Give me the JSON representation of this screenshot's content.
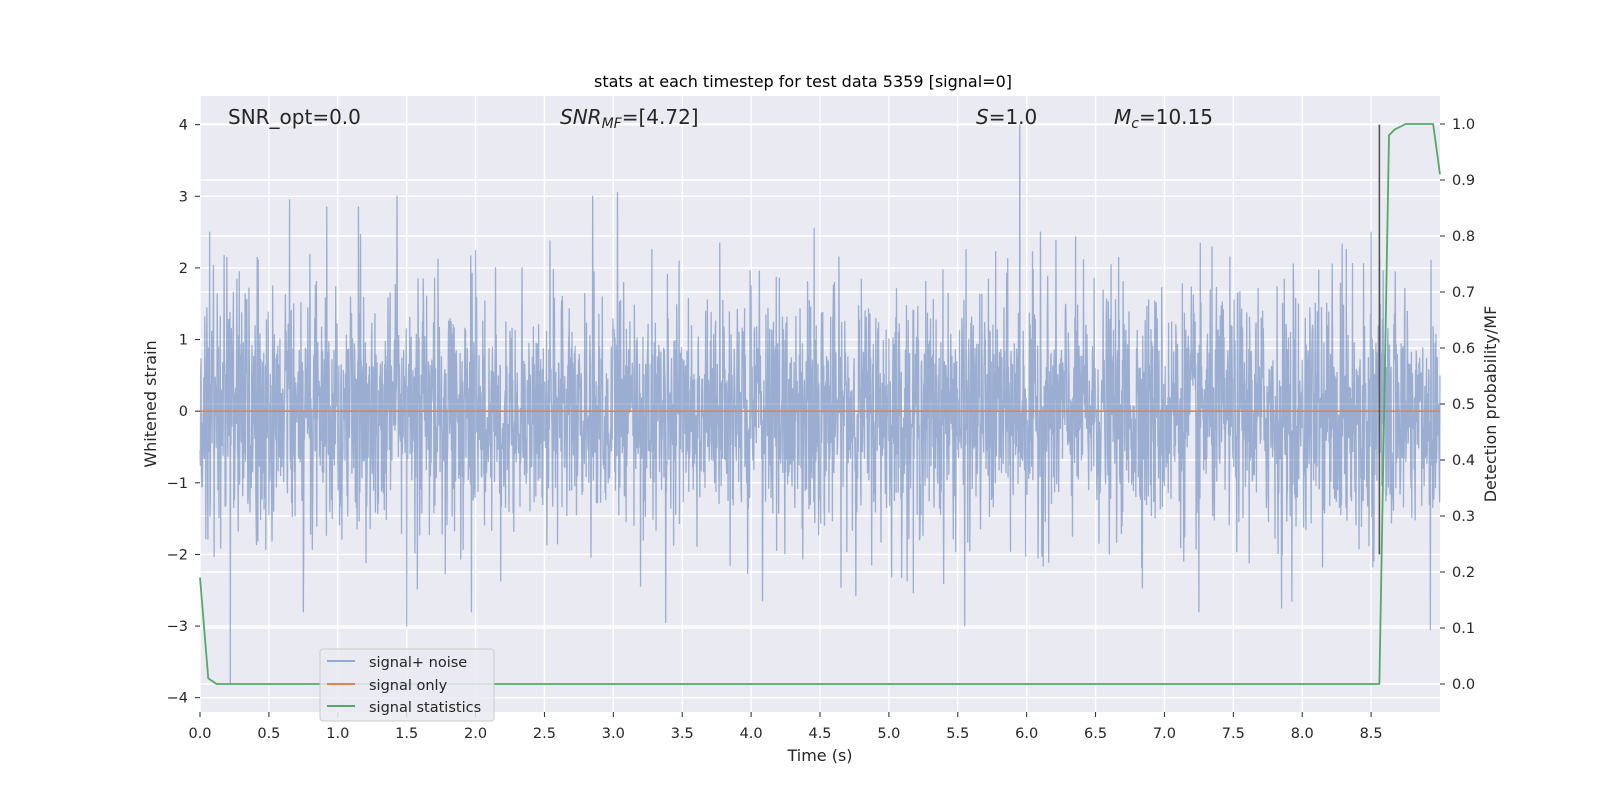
{
  "chart_data": {
    "type": "line",
    "title": "stats at each timestep for test data 5359 [signal=0]",
    "xlabel": "Time (s)",
    "ylabel": "Whitened strain",
    "y2label": "Detection probability/MF",
    "xlim": [
      0.0,
      9.0
    ],
    "ylim": [
      -4.2,
      4.4
    ],
    "y2lim": [
      -0.05,
      1.05
    ],
    "x_ticks": [
      "0.0",
      "0.5",
      "1.0",
      "1.5",
      "2.0",
      "2.5",
      "3.0",
      "3.5",
      "4.0",
      "4.5",
      "5.0",
      "5.5",
      "6.0",
      "6.5",
      "7.0",
      "7.5",
      "8.0",
      "8.5"
    ],
    "y_ticks": [
      "4",
      "3",
      "2",
      "1",
      "0",
      "−1",
      "−2",
      "−3",
      "−4"
    ],
    "y2_ticks": [
      "1.0",
      "0.9",
      "0.8",
      "0.7",
      "0.6",
      "0.5",
      "0.4",
      "0.3",
      "0.2",
      "0.1",
      "0.0"
    ],
    "grid": true,
    "legend_position": "lower-left",
    "annotations": {
      "snr_opt": "SNR_opt=0.0",
      "snr_mf_main": "SNR",
      "snr_mf_sub": "MF",
      "snr_mf_val": "=[4.72]",
      "s_main": "S",
      "s_val": "=1.0",
      "mc_main": "M",
      "mc_sub": "c",
      "mc_val": "=10.15"
    },
    "vertical_line": {
      "x": 8.56,
      "y_range": [
        -2.0,
        4.0
      ]
    },
    "series": [
      {
        "name": "signal+ noise",
        "color": "#4c72b0",
        "kind": "noise",
        "x_range": [
          0.0,
          9.0
        ],
        "typical_amplitude": 1.0,
        "peaks": [
          {
            "x": 0.07,
            "y": 2.5
          },
          {
            "x": 0.22,
            "y": -3.8
          },
          {
            "x": 0.65,
            "y": 2.95
          },
          {
            "x": 0.75,
            "y": -2.8
          },
          {
            "x": 0.92,
            "y": 2.85
          },
          {
            "x": 1.15,
            "y": 2.85
          },
          {
            "x": 1.43,
            "y": 3.0
          },
          {
            "x": 1.5,
            "y": -3.0
          },
          {
            "x": 1.97,
            "y": -2.8
          },
          {
            "x": 2.85,
            "y": 3.0
          },
          {
            "x": 3.03,
            "y": 3.05
          },
          {
            "x": 3.38,
            "y": -2.95
          },
          {
            "x": 5.55,
            "y": -3.0
          },
          {
            "x": 5.95,
            "y": 4.0
          },
          {
            "x": 6.1,
            "y": 2.5
          },
          {
            "x": 7.25,
            "y": -2.8
          },
          {
            "x": 7.85,
            "y": -2.75
          },
          {
            "x": 8.5,
            "y": 2.5
          },
          {
            "x": 8.93,
            "y": -3.05
          }
        ]
      },
      {
        "name": "signal only",
        "color": "#dd8452",
        "x": [
          0.0,
          9.0
        ],
        "y": [
          0.0,
          0.0
        ]
      },
      {
        "name": "signal statistics",
        "color": "#55a868",
        "axis": "right",
        "x": [
          0.0,
          0.06,
          0.12,
          0.5,
          1.0,
          2.0,
          3.0,
          4.0,
          5.0,
          6.0,
          7.0,
          8.0,
          8.56,
          8.63,
          8.67,
          8.75,
          8.95,
          9.0
        ],
        "y": [
          0.19,
          0.01,
          0.0,
          0.0,
          0.0,
          0.0,
          0.0,
          0.0,
          0.0,
          0.0,
          0.0,
          0.0,
          0.0,
          0.98,
          0.99,
          1.0,
          1.0,
          0.91
        ]
      }
    ]
  }
}
